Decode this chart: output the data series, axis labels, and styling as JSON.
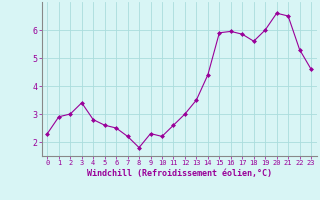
{
  "x": [
    0,
    1,
    2,
    3,
    4,
    5,
    6,
    7,
    8,
    9,
    10,
    11,
    12,
    13,
    14,
    15,
    16,
    17,
    18,
    19,
    20,
    21,
    22,
    23
  ],
  "y": [
    2.3,
    2.9,
    3.0,
    3.4,
    2.8,
    2.6,
    2.5,
    2.2,
    1.8,
    2.3,
    2.2,
    2.6,
    3.0,
    3.5,
    4.4,
    5.9,
    5.95,
    5.85,
    5.6,
    6.0,
    6.6,
    6.5,
    5.3,
    4.6
  ],
  "line_color": "#990099",
  "marker": "D",
  "marker_size": 2,
  "bg_color": "#d8f5f5",
  "grid_color": "#aadddd",
  "xlabel": "Windchill (Refroidissement éolien,°C)",
  "xlabel_color": "#990099",
  "tick_color": "#990099",
  "spine_color": "#888888",
  "xlim": [
    -0.5,
    23.5
  ],
  "ylim": [
    1.5,
    7.0
  ],
  "yticks": [
    2,
    3,
    4,
    5,
    6
  ],
  "xticks": [
    0,
    1,
    2,
    3,
    4,
    5,
    6,
    7,
    8,
    9,
    10,
    11,
    12,
    13,
    14,
    15,
    16,
    17,
    18,
    19,
    20,
    21,
    22,
    23
  ]
}
